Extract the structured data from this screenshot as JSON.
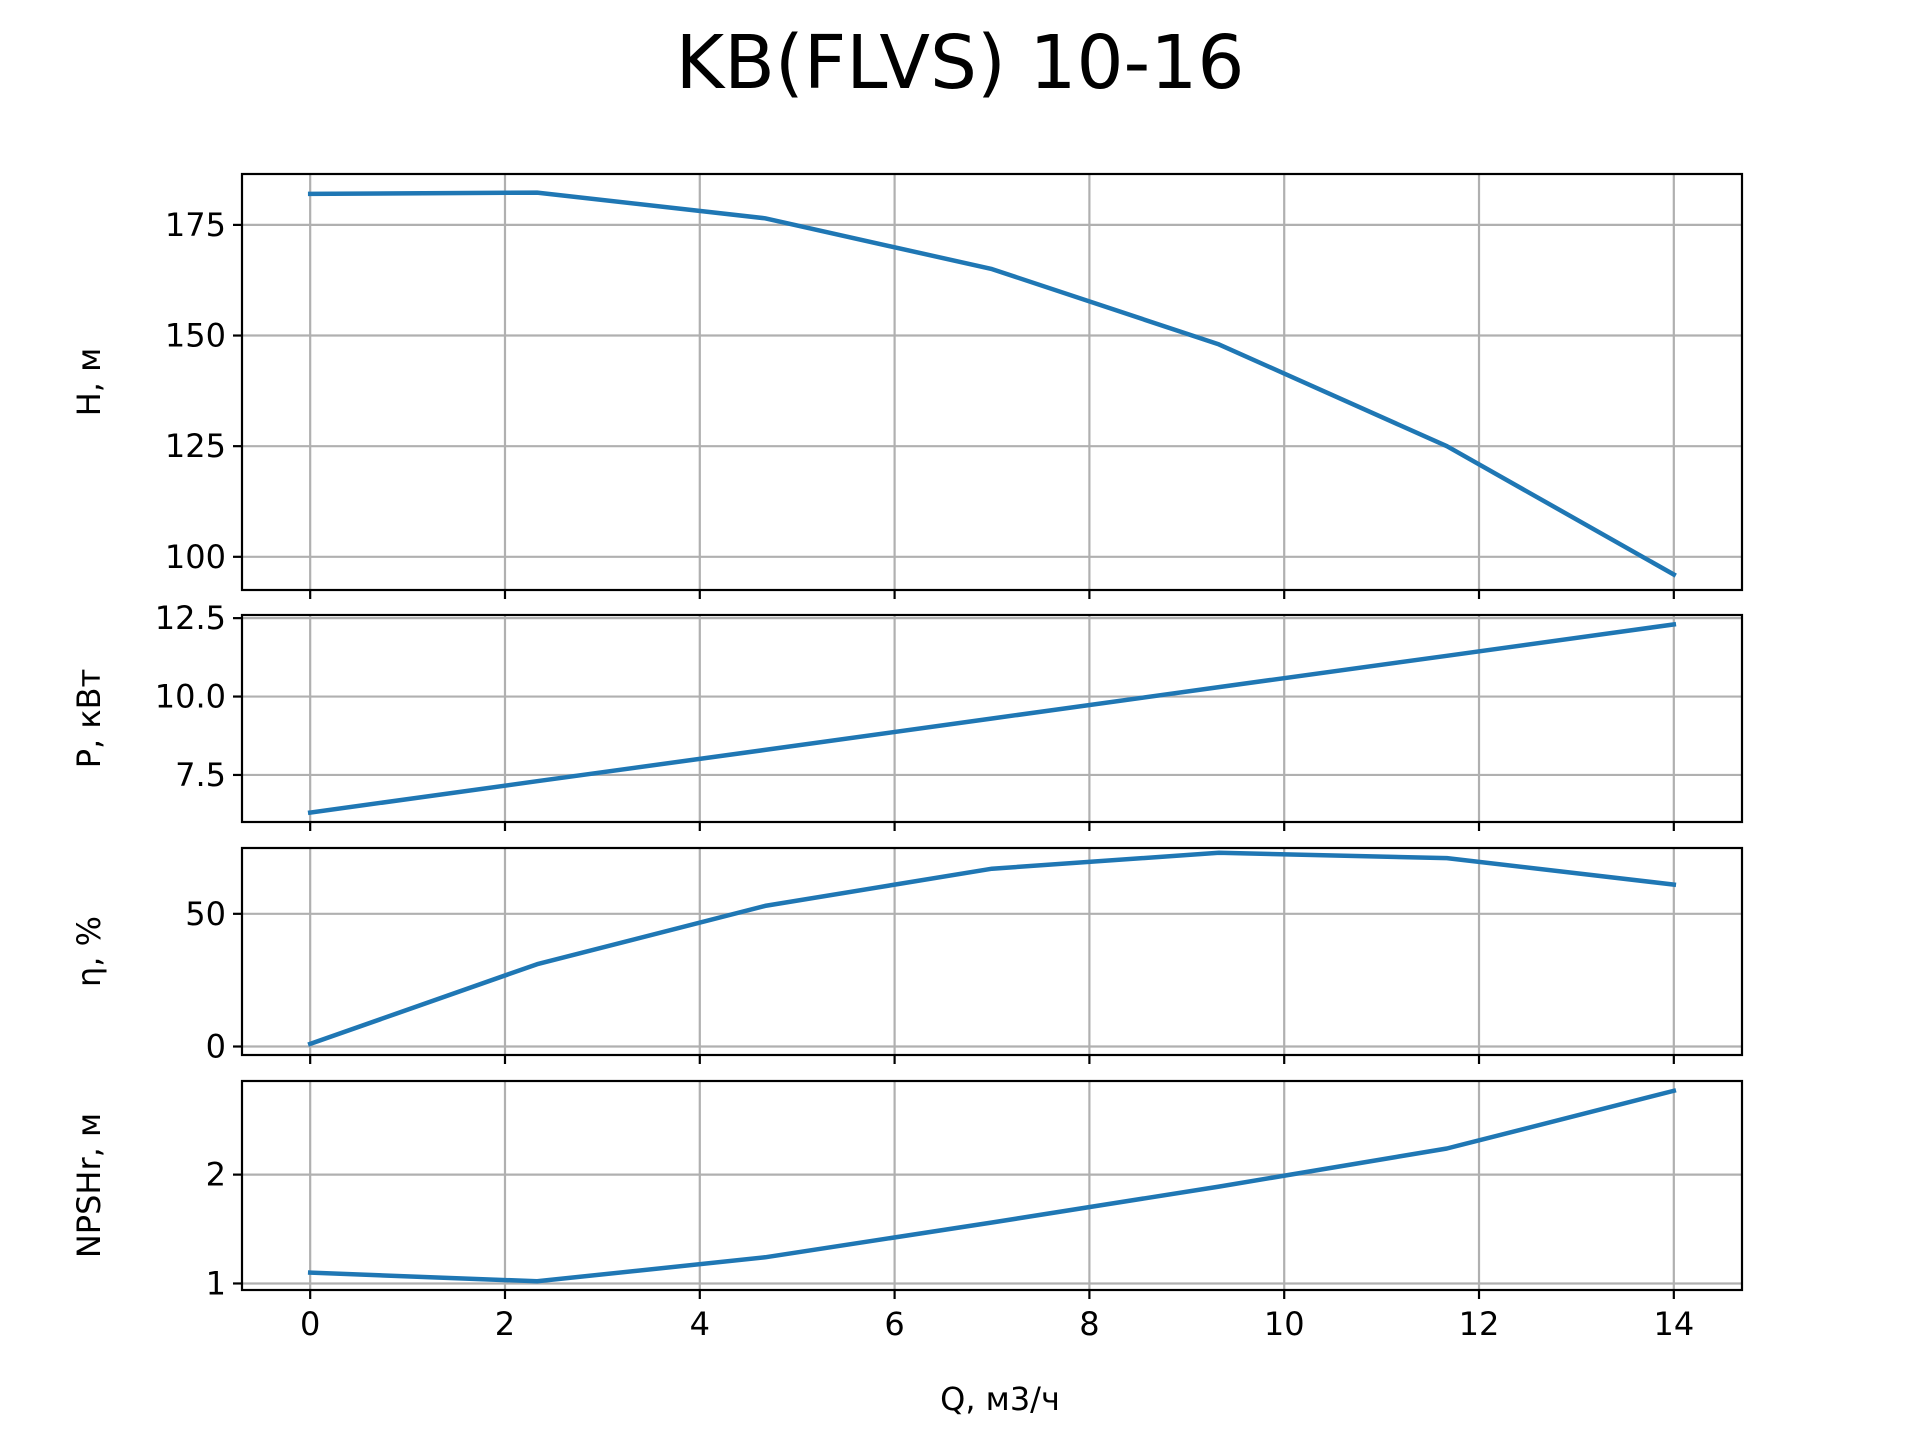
{
  "chart_data": {
    "title": "KB(FLVS) 10-16",
    "xlabel": "Q, м3/ч",
    "x_ticks": [
      0,
      2,
      4,
      6,
      8,
      10,
      12,
      14
    ],
    "x_tick_labels": [
      "0",
      "2",
      "4",
      "6",
      "8",
      "10",
      "12",
      "14"
    ],
    "xlim": [
      -0.7,
      14.7
    ],
    "line_color": "#1f77b4",
    "grid": true,
    "panels": [
      {
        "key": "head",
        "type": "line",
        "ylabel": "H, м",
        "ylim": [
          92.5,
          186.5
        ],
        "y_ticks": [
          100,
          125,
          150,
          175
        ],
        "y_tick_labels": [
          "100",
          "125",
          "150",
          "175"
        ],
        "x": [
          0,
          2.33,
          4.67,
          7,
          9.33,
          11.67,
          14
        ],
        "y": [
          182,
          182.3,
          176.5,
          165,
          148,
          125,
          96
        ]
      },
      {
        "key": "power",
        "type": "line",
        "ylabel": "P, кВт",
        "ylim": [
          6.0,
          12.6
        ],
        "y_ticks": [
          7.5,
          10.0,
          12.5
        ],
        "y_tick_labels": [
          "7.5",
          "10.0",
          "12.5"
        ],
        "x": [
          0,
          2.33,
          4.67,
          7,
          9.33,
          11.67,
          14
        ],
        "y": [
          6.3,
          7.3,
          8.3,
          9.3,
          10.3,
          11.3,
          12.3
        ]
      },
      {
        "key": "efficiency",
        "type": "line",
        "ylabel": "η, %",
        "ylim": [
          -3.2,
          74.8
        ],
        "y_ticks": [
          0,
          50
        ],
        "y_tick_labels": [
          "0",
          "50"
        ],
        "x": [
          0,
          2.33,
          4.67,
          7,
          9.33,
          11.67,
          14
        ],
        "y": [
          1,
          31,
          53,
          67,
          73,
          71,
          61
        ]
      },
      {
        "key": "npsh",
        "type": "line",
        "ylabel": "NPSHr, м",
        "ylim": [
          0.94,
          2.86
        ],
        "y_ticks": [
          1,
          2
        ],
        "y_tick_labels": [
          "1",
          "2"
        ],
        "x": [
          0,
          2.33,
          4.67,
          7,
          9.33,
          11.67,
          14
        ],
        "y": [
          1.1,
          1.02,
          1.24,
          1.56,
          1.89,
          2.24,
          2.77
        ]
      }
    ]
  }
}
